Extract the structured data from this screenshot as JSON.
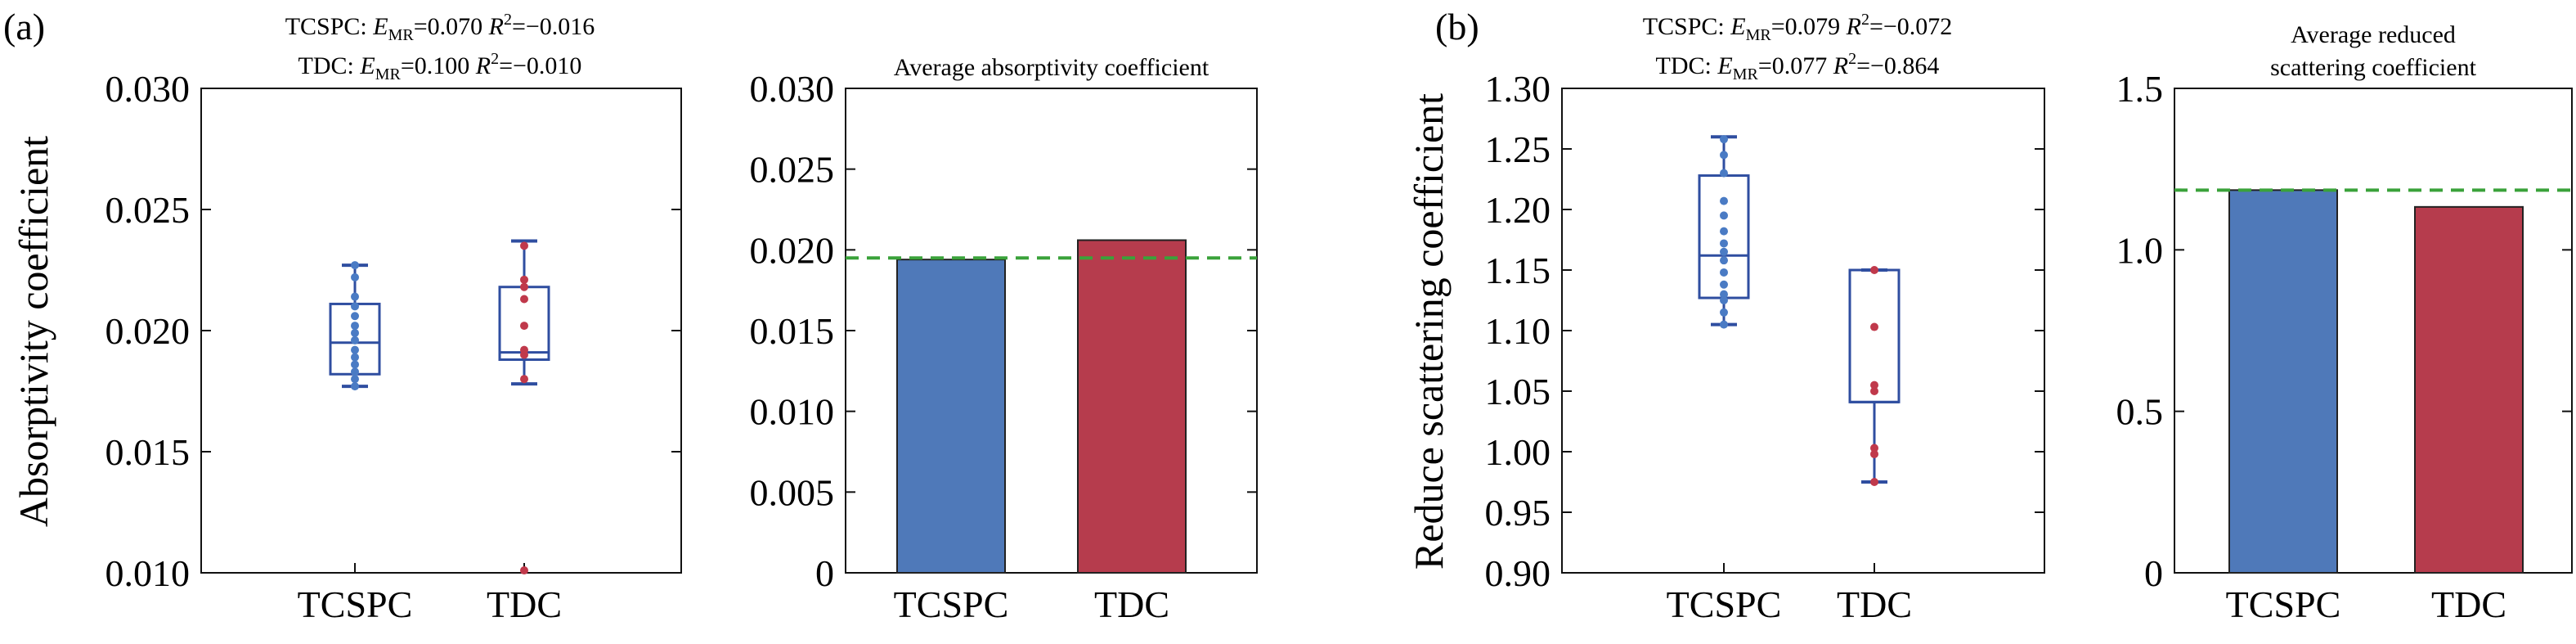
{
  "panels": [
    {
      "label": "(a)"
    },
    {
      "label": "(b)"
    }
  ],
  "chart_data": [
    {
      "type": "box",
      "panel": "(a)",
      "ylabel": "Absorptivity coefficient",
      "annotations": [
        "TCSPC:",
        "E",
        "MR",
        "=0.070",
        "R",
        "2",
        "=−0.016",
        "TDC:",
        "E",
        "MR",
        "=0.100",
        "R",
        "2",
        "=−0.010"
      ],
      "ann": {
        "l1": {
          "name": "TCSPC:",
          "e": "E",
          "sub": "MR",
          "emr": "=0.070",
          "r": "R",
          "sup": "2",
          "r2": "=−0.016"
        },
        "l2": {
          "name": "TDC:",
          "e": "E",
          "sub": "MR",
          "emr": "=0.100",
          "r": "R",
          "sup": "2",
          "r2": "=−0.010"
        }
      },
      "ylim": [
        0.01,
        0.03
      ],
      "yticks": [
        "0.010",
        "0.015",
        "0.020",
        "0.025",
        "0.030"
      ],
      "yticks_val": [
        0.01,
        0.015,
        0.02,
        0.025,
        0.03
      ],
      "categories": [
        "TCSPC",
        "TDC"
      ],
      "boxes": [
        {
          "name": "TCSPC",
          "whisker_low": 0.0177,
          "q1": 0.0182,
          "median": 0.0195,
          "q3": 0.0211,
          "whisker_high": 0.0227,
          "points": [
            0.0177,
            0.018,
            0.0183,
            0.0186,
            0.0189,
            0.0192,
            0.0196,
            0.0199,
            0.0202,
            0.0206,
            0.021,
            0.0214,
            0.0222,
            0.0227
          ],
          "point_color": "#4a7bc4"
        },
        {
          "name": "TDC",
          "whisker_low": 0.0178,
          "q1": 0.0188,
          "median": 0.0191,
          "q3": 0.0218,
          "whisker_high": 0.0237,
          "points": [
            0.0101,
            0.018,
            0.019,
            0.0192,
            0.0202,
            0.0213,
            0.0218,
            0.0221,
            0.0235
          ],
          "point_color": "#c0394b"
        }
      ]
    },
    {
      "type": "bar",
      "panel": "(a)",
      "title": "Average absorptivity coefficient",
      "title_lines": [
        "Average absorptivity coefficient"
      ],
      "ylim": [
        0,
        0.03
      ],
      "yticks": [
        "0",
        "0.005",
        "0.010",
        "0.015",
        "0.020",
        "0.025",
        "0.030"
      ],
      "yticks_val": [
        0,
        0.005,
        0.01,
        0.015,
        0.02,
        0.025,
        0.03
      ],
      "categories": [
        "TCSPC",
        "TDC"
      ],
      "values": [
        0.0194,
        0.0206
      ],
      "colors": [
        "#4f79b9",
        "#b63c4d"
      ],
      "reference_line": 0.0195,
      "reference_color": "#3aa23a"
    },
    {
      "type": "box",
      "panel": "(b)",
      "ylabel": "Reduce scattering coefficient",
      "ann": {
        "l1": {
          "name": "TCSPC:",
          "e": "E",
          "sub": "MR",
          "emr": "=0.079",
          "r": "R",
          "sup": "2",
          "r2": "=−0.072"
        },
        "l2": {
          "name": "TDC:",
          "e": "E",
          "sub": "MR",
          "emr": "=0.077",
          "r": "R",
          "sup": "2",
          "r2": "=−0.864"
        }
      },
      "ylim": [
        0.9,
        1.3
      ],
      "yticks": [
        "0.90",
        "0.95",
        "1.00",
        "1.05",
        "1.10",
        "1.15",
        "1.20",
        "1.25",
        "1.30"
      ],
      "yticks_val": [
        0.9,
        0.95,
        1.0,
        1.05,
        1.1,
        1.15,
        1.2,
        1.25,
        1.3
      ],
      "categories": [
        "TCSPC",
        "TDC"
      ],
      "boxes": [
        {
          "name": "TCSPC",
          "whisker_low": 1.105,
          "q1": 1.127,
          "median": 1.162,
          "q3": 1.228,
          "whisker_high": 1.26,
          "points": [
            1.105,
            1.115,
            1.125,
            1.13,
            1.138,
            1.148,
            1.158,
            1.165,
            1.172,
            1.182,
            1.195,
            1.207,
            1.23,
            1.245,
            1.258
          ],
          "point_color": "#4a7bc4"
        },
        {
          "name": "TDC",
          "whisker_low": 0.975,
          "q1": 1.041,
          "median": 1.041,
          "q3": 1.15,
          "whisker_high": 1.15,
          "points": [
            0.975,
            0.998,
            1.003,
            1.05,
            1.055,
            1.103,
            1.15
          ],
          "point_color": "#c0394b"
        }
      ]
    },
    {
      "type": "bar",
      "panel": "(b)",
      "title": "Average reduced scattering coefficient",
      "title_lines": [
        "Average reduced",
        "scattering coefficient"
      ],
      "ylim": [
        0,
        1.5
      ],
      "yticks": [
        "0",
        "0.5",
        "1.0",
        "1.5"
      ],
      "yticks_val": [
        0,
        0.5,
        1.0,
        1.5
      ],
      "categories": [
        "TCSPC",
        "TDC"
      ],
      "values": [
        1.185,
        1.133
      ],
      "colors": [
        "#4f79b9",
        "#b63c4d"
      ],
      "reference_line": 1.185,
      "reference_color": "#3aa23a"
    }
  ]
}
